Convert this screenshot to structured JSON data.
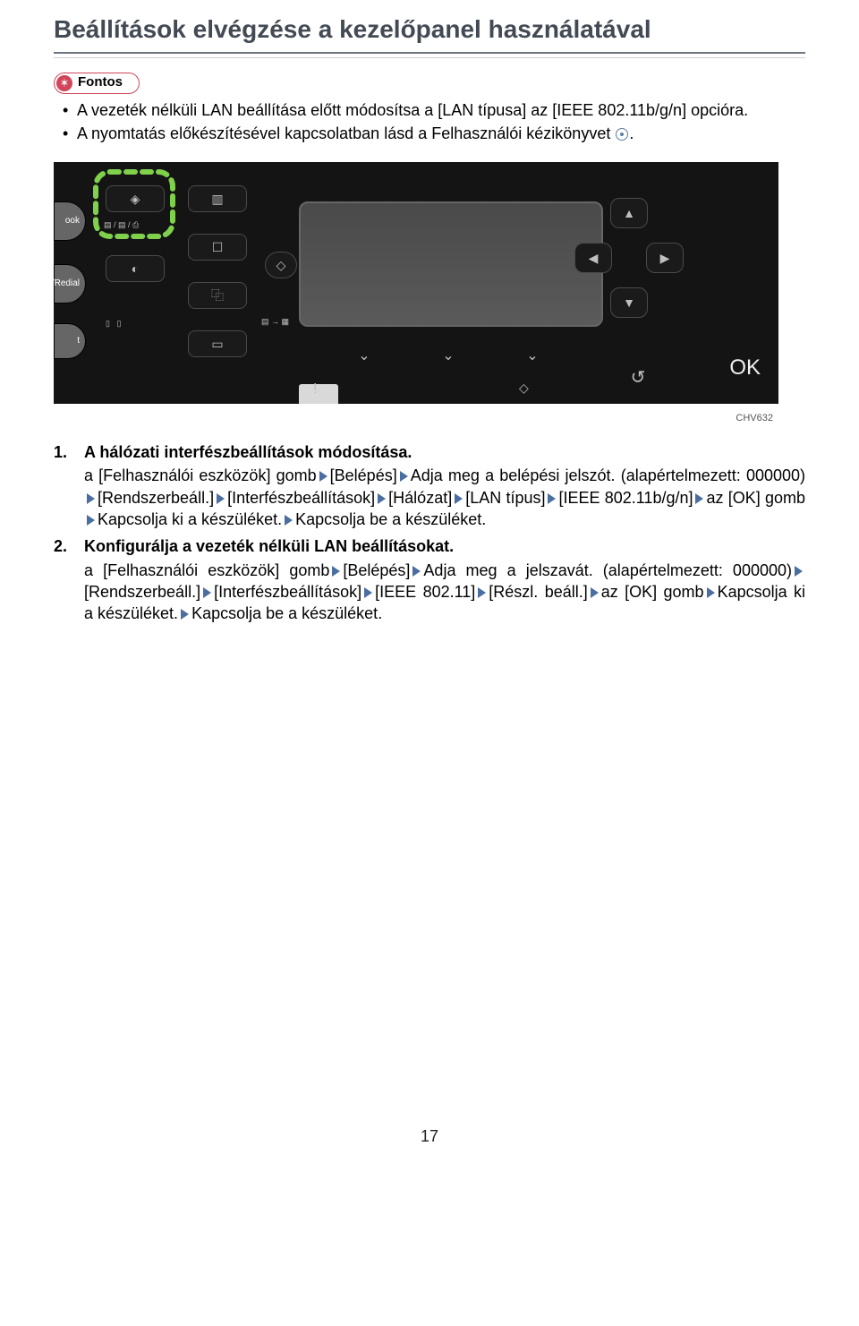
{
  "title": "Beállítások elvégzése a kezelőpanel használatával",
  "important_label": "Fontos",
  "bullets": [
    "A vezeték nélküli LAN beállítása előtt módosítsa a [LAN típusa] az [IEEE 802.11b/g/n] opcióra.",
    "A nyomtatás előkészítésével kapcsolatban lásd a Felhasználói kézikönyvet "
  ],
  "fig_code": "CHV632",
  "panel": {
    "left_tabs": [
      "ook",
      "e/Redial",
      "t"
    ],
    "ok_label": "OK",
    "highlight_color": "#7fd04a",
    "glyph_color": "#bfbfbf",
    "background": "#141414"
  },
  "arrow_color": "#4a6ea0",
  "steps": [
    {
      "num": "1.",
      "head": "A hálózati interfészbeállítások módosítása.",
      "parts": [
        {
          "t": "text",
          "v": "a [Felhasználói eszközök] gomb"
        },
        {
          "t": "arrow"
        },
        {
          "t": "text",
          "v": "[Belépés]"
        },
        {
          "t": "arrow"
        },
        {
          "t": "text",
          "v": "Adja meg a belépési jelszót. (alapértelmezett: 000000)"
        },
        {
          "t": "arrow"
        },
        {
          "t": "text",
          "v": "[Rendszerbeáll.]"
        },
        {
          "t": "arrow"
        },
        {
          "t": "text",
          "v": "[Interfészbeállítások]"
        },
        {
          "t": "arrow"
        },
        {
          "t": "text",
          "v": "[Hálózat]"
        },
        {
          "t": "arrow"
        },
        {
          "t": "text",
          "v": "[LAN típus]"
        },
        {
          "t": "arrow"
        },
        {
          "t": "text",
          "v": "[IEEE 802.11b/g/n]"
        },
        {
          "t": "arrow"
        },
        {
          "t": "text",
          "v": "az [OK] gomb"
        },
        {
          "t": "arrow"
        },
        {
          "t": "text",
          "v": "Kapcsolja ki a készüléket."
        },
        {
          "t": "arrow"
        },
        {
          "t": "text",
          "v": "Kapcsolja be a készüléket."
        }
      ]
    },
    {
      "num": "2.",
      "head": "Konfigurálja a vezeték nélküli LAN beállításokat.",
      "parts": [
        {
          "t": "text",
          "v": "a [Felhasználói eszközök] gomb"
        },
        {
          "t": "arrow"
        },
        {
          "t": "text",
          "v": "[Belépés]"
        },
        {
          "t": "arrow"
        },
        {
          "t": "text",
          "v": "Adja meg a jelszavát. (alapértelmezett: 000000)"
        },
        {
          "t": "arrow"
        },
        {
          "t": "text",
          "v": "[Rendszerbeáll.]"
        },
        {
          "t": "arrow"
        },
        {
          "t": "text",
          "v": "[Interfészbeállítások]"
        },
        {
          "t": "arrow"
        },
        {
          "t": "text",
          "v": "[IEEE 802.11]"
        },
        {
          "t": "arrow"
        },
        {
          "t": "text",
          "v": "[Részl. beáll.]"
        },
        {
          "t": "arrow"
        },
        {
          "t": "text",
          "v": "az [OK] gomb"
        },
        {
          "t": "arrow"
        },
        {
          "t": "text",
          "v": "Kapcsolja ki a készüléket."
        },
        {
          "t": "arrow"
        },
        {
          "t": "text",
          "v": "Kapcsolja be a készüléket."
        }
      ]
    }
  ],
  "page_number": "17"
}
